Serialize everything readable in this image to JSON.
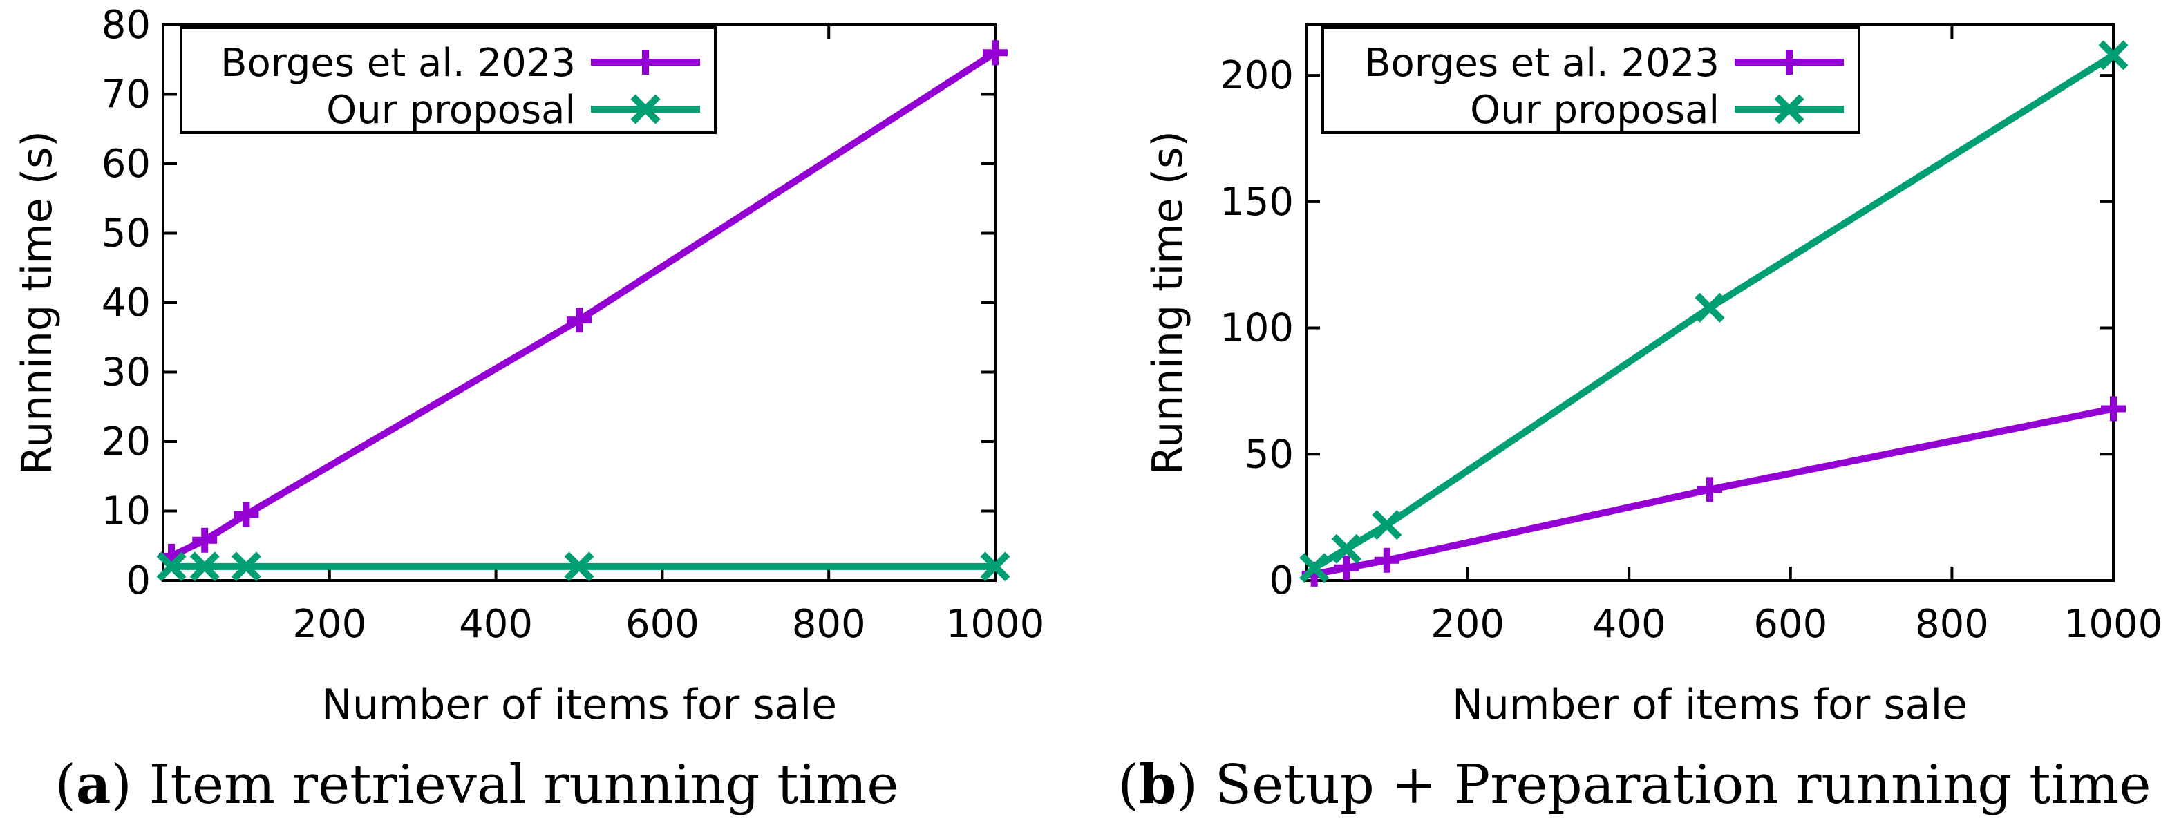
{
  "chart_data": [
    {
      "type": "line",
      "panel": "a",
      "caption_letter": "a",
      "caption_text": "Item retrieval running time",
      "xlabel": "Number of items for sale",
      "ylabel": "Running time (s)",
      "xlim": [
        0,
        1000
      ],
      "ylim": [
        0,
        80
      ],
      "xticks": [
        200,
        400,
        600,
        800,
        1000
      ],
      "yticks": [
        0,
        10,
        20,
        30,
        40,
        50,
        60,
        70,
        80
      ],
      "legend_position": "top-left",
      "grid": false,
      "x": [
        10,
        50,
        100,
        500,
        1000
      ],
      "series": [
        {
          "name": "Borges et al. 2023",
          "color": "#9400d3",
          "marker": "plus",
          "values": [
            3.5,
            5.8,
            9.5,
            37.5,
            76
          ]
        },
        {
          "name": "Our proposal",
          "color": "#009e73",
          "marker": "cross",
          "values": [
            2.0,
            2.0,
            2.0,
            2.0,
            2.0
          ]
        }
      ]
    },
    {
      "type": "line",
      "panel": "b",
      "caption_letter": "b",
      "caption_text": "Setup + Preparation running time",
      "xlabel": "Number of items for sale",
      "ylabel": "Running time (s)",
      "xlim": [
        0,
        1000
      ],
      "ylim": [
        0,
        220
      ],
      "xticks": [
        200,
        400,
        600,
        800,
        1000
      ],
      "yticks": [
        0,
        50,
        100,
        150,
        200
      ],
      "legend_position": "top-left",
      "grid": false,
      "x": [
        10,
        50,
        100,
        500,
        1000
      ],
      "series": [
        {
          "name": "Borges et al. 2023",
          "color": "#9400d3",
          "marker": "plus",
          "values": [
            2.5,
            5,
            8,
            36,
            68
          ]
        },
        {
          "name": "Our proposal",
          "color": "#009e73",
          "marker": "cross",
          "values": [
            5,
            12.5,
            22,
            108,
            208
          ]
        }
      ]
    }
  ]
}
